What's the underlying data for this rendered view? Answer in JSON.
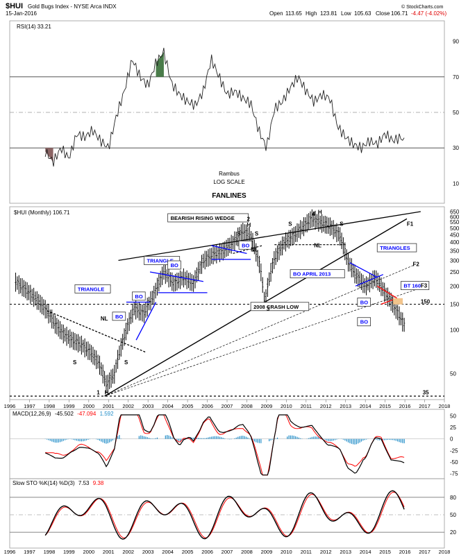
{
  "header": {
    "symbol": "$HUI",
    "name": "Gold Bugs Index - NYSE Arca INDX",
    "date": "15-Jan-2016",
    "open_label": "Open",
    "open": "113.65",
    "high_label": "High",
    "high": "123.81",
    "low_label": "Low",
    "low": "105.63",
    "close_label": "Close",
    "close": "106.71",
    "change": "-4.47 (-4.02%)",
    "credit": "© StockCharts.com"
  },
  "colors": {
    "price": "#000000",
    "trend_blue": "#0000ff",
    "trend_red": "#ff0000",
    "fill_overbought": "#4a7c4a",
    "fill_oversold": "#8b6464",
    "macd_hist": "#1e8cc8",
    "signal_red": "#ff0000",
    "annotation_bt": "#f2c48c"
  },
  "chart_data": [
    {
      "type": "line",
      "panel": "rsi",
      "label": "RSI(14) 33.21",
      "y_ticks": [
        "90",
        "70",
        "50",
        "30",
        "10"
      ],
      "ylim": [
        0,
        100
      ],
      "series": [
        {
          "name": "RSI(14)",
          "x": [
            1997.8,
            1998.2,
            1998.6,
            1999.0,
            1999.4,
            1999.8,
            2000.2,
            2000.6,
            2001.0,
            2001.4,
            2001.8,
            2002.2,
            2002.6,
            2003.0,
            2003.4,
            2003.8,
            2004.2,
            2004.6,
            2005.0,
            2005.4,
            2005.8,
            2006.2,
            2006.6,
            2007.0,
            2007.4,
            2007.8,
            2008.2,
            2008.6,
            2009.0,
            2009.4,
            2009.8,
            2010.2,
            2010.6,
            2011.0,
            2011.4,
            2011.8,
            2012.2,
            2012.6,
            2013.0,
            2013.4,
            2013.8,
            2014.2,
            2014.6,
            2015.0,
            2015.4,
            2015.8,
            2016.0
          ],
          "values": [
            28,
            22,
            30,
            24,
            38,
            36,
            40,
            34,
            30,
            48,
            62,
            80,
            70,
            65,
            78,
            84,
            66,
            60,
            56,
            54,
            62,
            80,
            70,
            60,
            62,
            58,
            55,
            40,
            30,
            52,
            56,
            64,
            70,
            62,
            56,
            60,
            58,
            42,
            36,
            32,
            30,
            34,
            32,
            38,
            34,
            36,
            33.21
          ]
        }
      ]
    },
    {
      "type": "line",
      "panel": "price",
      "label": "$HUI (Monthly) 106.71",
      "log_scale": true,
      "ylim": [
        35,
        650
      ],
      "y_ticks": [
        "650",
        "600",
        "550",
        "500",
        "450",
        "400",
        "350",
        "300",
        "250",
        "200",
        "150",
        "100",
        "50"
      ],
      "x_ticks": [
        "1996",
        "1997",
        "1998",
        "1999",
        "2000",
        "2001",
        "2002",
        "2003",
        "2004",
        "2005",
        "2006",
        "2007",
        "2008",
        "2009",
        "2010",
        "2011",
        "2012",
        "2013",
        "2014",
        "2015",
        "2016",
        "2017",
        "2018"
      ],
      "series": [
        {
          "name": "$HUI",
          "x": [
            1996.3,
            1996.8,
            1997.3,
            1997.8,
            1998.3,
            1998.7,
            1999.2,
            1999.6,
            2000.1,
            2000.5,
            2000.9,
            2001.3,
            2001.8,
            2002.3,
            2002.8,
            2003.3,
            2003.8,
            2004.3,
            2004.8,
            2005.3,
            2005.8,
            2006.3,
            2006.8,
            2007.3,
            2007.8,
            2008.2,
            2008.7,
            2008.9,
            2009.4,
            2009.9,
            2010.4,
            2010.9,
            2011.3,
            2011.7,
            2012.2,
            2012.7,
            2013.1,
            2013.5,
            2014.0,
            2014.5,
            2015.0,
            2015.4,
            2015.8,
            2016.0
          ],
          "values": [
            215,
            190,
            165,
            140,
            110,
            95,
            85,
            80,
            70,
            60,
            42,
            50,
            90,
            140,
            130,
            175,
            250,
            210,
            230,
            210,
            300,
            330,
            350,
            400,
            480,
            440,
            260,
            150,
            310,
            400,
            450,
            520,
            590,
            550,
            520,
            450,
            300,
            240,
            200,
            230,
            180,
            150,
            120,
            106.71
          ]
        }
      ],
      "annotations": {
        "bearish_wedge": "BEARISH RISING WEDGE",
        "triangle_1": "TRIANGLE",
        "triangle_2": "TRIANGLE",
        "triangles": "TRIANGLES",
        "bo_april": "BO APRIL 2013",
        "crash": "2008 CRASH LOW",
        "bt160": "BT 160",
        "bo": "BO",
        "nl": "NL",
        "s": "S",
        "h": "H",
        "f1": "F1",
        "f2": "F2",
        "f3": "F3",
        "lvl150": "150",
        "lvl35": "35",
        "n1": "1",
        "n2": "2",
        "n3": "3",
        "n4": "4",
        "rambus": "Rambus",
        "log": "LOG SCALE",
        "fanlines": "FANLINES"
      }
    },
    {
      "type": "line",
      "panel": "macd",
      "label_prefix": "MACD(12,26,9)",
      "label_a": "-45.502",
      "label_b": "-47.094",
      "label_c": "1.592",
      "y_ticks": [
        "50",
        "25",
        "0",
        "-25",
        "-50",
        "-75"
      ],
      "ylim": [
        -80,
        55
      ]
    },
    {
      "type": "line",
      "panel": "sto",
      "label_prefix": "Slow STO %K(14) %D(3)",
      "label_a": "7.53",
      "label_b": "9.38",
      "y_ticks": [
        "80",
        "50",
        "20"
      ],
      "ylim": [
        0,
        100
      ]
    }
  ]
}
